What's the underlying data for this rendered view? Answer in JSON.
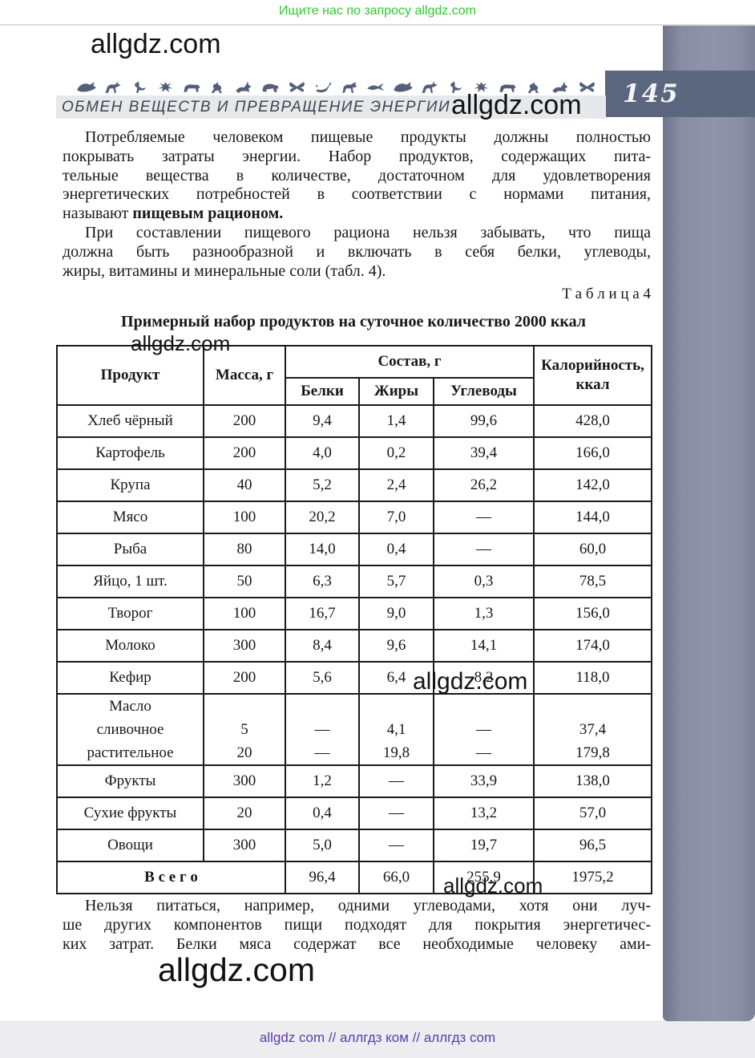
{
  "top_banner": {
    "text": "Ищите нас по запросу allgdz.com",
    "color": "#2fca2f"
  },
  "watermark": {
    "text": "allgdz.com"
  },
  "header": {
    "chapter_title": "ОБМЕН ВЕЩЕСТВ И ПРЕВРАЩЕНИЕ ЭНЕРГИИ",
    "page_number": "145",
    "page_number_bg": "#5b667f",
    "animals": [
      "whale",
      "deer",
      "bird",
      "bug",
      "boar",
      "kangaroo",
      "hare",
      "bison",
      "butterfly",
      "scorpion",
      "horse",
      "swallow",
      "whale",
      "deer",
      "bird",
      "bug",
      "boar",
      "kangaroo",
      "hare",
      "butterfly"
    ]
  },
  "paragraph1": {
    "lines": [
      "Потребляемые человеком пищевые продукты должны полностью",
      "покрывать затраты энергии. Набор продуктов, содержащих пита-",
      "тельные вещества в количестве, достаточном для удовлетворения",
      "энергетических потребностей в соответствии с нормами питания,"
    ],
    "last_prefix": "называют ",
    "last_bold": "пищевым рационом."
  },
  "paragraph2": {
    "lines": [
      "При составлении пищевого рациона нельзя забывать, что пища",
      "должна быть разнообразной и включать в себя белки, углеводы,"
    ],
    "last": "жиры, витамины и минеральные соли (табл. 4)."
  },
  "table_label": "Т а б л и ц а   4",
  "table_title": "Примерный набор продуктов на суточное количество 2000 ккал",
  "table": {
    "header": {
      "product": "Продукт",
      "mass": "Масса, г",
      "composition": "Состав, г",
      "protein": "Белки",
      "fat": "Жиры",
      "carbs": "Углеводы",
      "calories_line1": "Калорийность,",
      "calories_line2": "ккал"
    },
    "rows": [
      {
        "type": "simple",
        "cells": [
          "Хлеб чёрный",
          "200",
          "9,4",
          "1,4",
          "99,6",
          "428,0"
        ]
      },
      {
        "type": "simple",
        "cells": [
          "Картофель",
          "200",
          "4,0",
          "0,2",
          "39,4",
          "166,0"
        ]
      },
      {
        "type": "simple",
        "cells": [
          "Крупа",
          "40",
          "5,2",
          "2,4",
          "26,2",
          "142,0"
        ]
      },
      {
        "type": "simple",
        "cells": [
          "Мясо",
          "100",
          "20,2",
          "7,0",
          "—",
          "144,0"
        ]
      },
      {
        "type": "simple",
        "cells": [
          "Рыба",
          "80",
          "14,0",
          "0,4",
          "—",
          "60,0"
        ]
      },
      {
        "type": "simple",
        "cells": [
          "Яйцо, 1 шт.",
          "50",
          "6,3",
          "5,7",
          "0,3",
          "78,5"
        ]
      },
      {
        "type": "simple",
        "cells": [
          "Творог",
          "100",
          "16,7",
          "9,0",
          "1,3",
          "156,0"
        ]
      },
      {
        "type": "simple",
        "cells": [
          "Молоко",
          "300",
          "8,4",
          "9,6",
          "14,1",
          "174,0"
        ]
      },
      {
        "type": "simple",
        "cells": [
          "Кефир",
          "200",
          "5,6",
          "6,4",
          "8,2",
          "118,0"
        ]
      },
      {
        "type": "multiline",
        "cells": [
          [
            "Масло",
            "сливочное",
            "растительное"
          ],
          [
            "",
            "5",
            "20"
          ],
          [
            "",
            "—",
            "—"
          ],
          [
            "",
            "4,1",
            "19,8"
          ],
          [
            "",
            "—",
            "—"
          ],
          [
            "",
            "37,4",
            "179,8"
          ]
        ]
      },
      {
        "type": "simple",
        "cells": [
          "Фрукты",
          "300",
          "1,2",
          "—",
          "33,9",
          "138,0"
        ]
      },
      {
        "type": "simple",
        "cells": [
          "Сухие фрукты",
          "20",
          "0,4",
          "—",
          "13,2",
          "57,0"
        ]
      },
      {
        "type": "simple",
        "cells": [
          "Овощи",
          "300",
          "5,0",
          "—",
          "19,7",
          "96,5"
        ]
      },
      {
        "type": "total",
        "label": "В с е г о",
        "cells": [
          "96,4",
          "66,0",
          "255,9",
          "1975,2"
        ]
      }
    ]
  },
  "paragraph3": {
    "lines": [
      "Нельзя питаться, например, одними углеводами, хотя они луч-",
      "ше других компонентов пищи подходят для покрытия энергетичес-",
      "ких затрат. Белки мяса содержат все необходимые человеку ами-"
    ]
  },
  "footer": {
    "text": "allgdz com  //  аллгдз ком  //  аллгдз com",
    "color": "#5b3ea8"
  }
}
